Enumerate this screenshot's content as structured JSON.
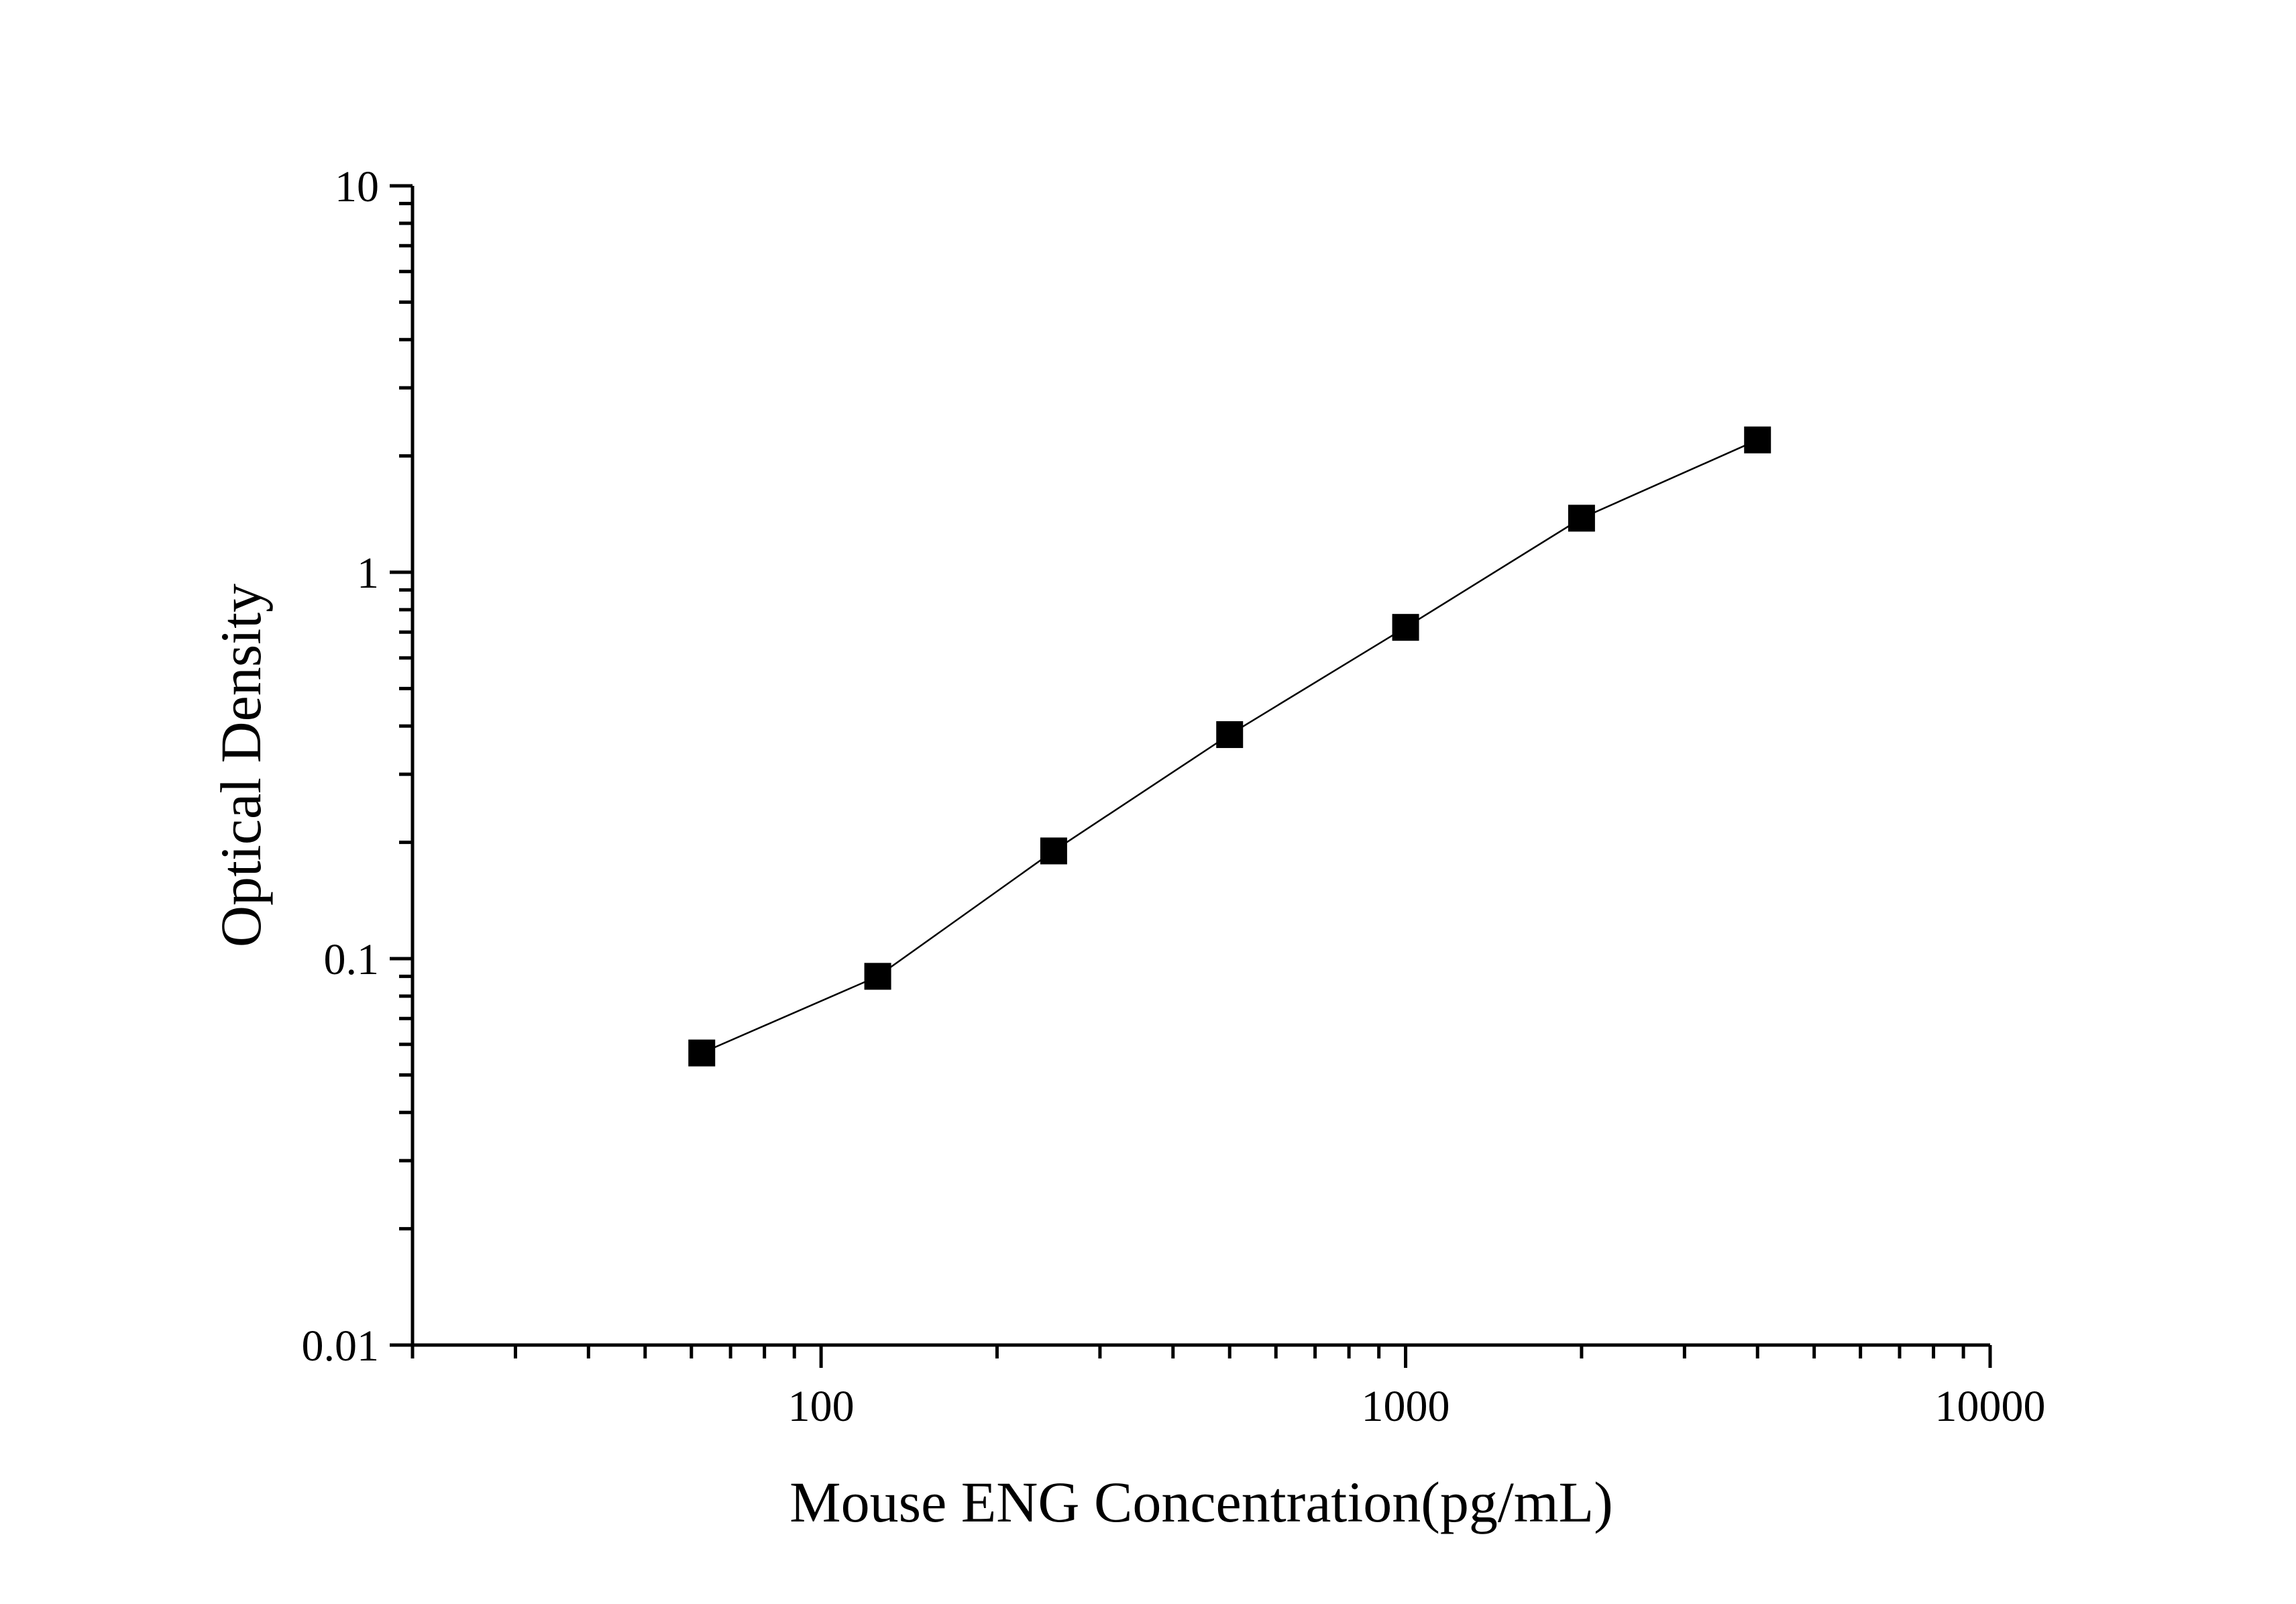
{
  "chart_data": {
    "type": "scatter",
    "xlabel": "Mouse ENG Concentration(pg/mL)",
    "ylabel": "Optical Density",
    "xscale": "log",
    "yscale": "log",
    "xlim": [
      20,
      10000
    ],
    "ylim": [
      0.01,
      10
    ],
    "x_ticks": [
      "100",
      "1000",
      "10000"
    ],
    "y_ticks": [
      "0.01",
      "0.1",
      "1",
      "10"
    ],
    "grid": false,
    "legend": "none",
    "series": [
      {
        "x": [
          62.5,
          125,
          250,
          500,
          1000,
          2000,
          4000
        ],
        "y": [
          0.057,
          0.09,
          0.19,
          0.38,
          0.72,
          1.38,
          2.2
        ],
        "marker": "square",
        "line": true,
        "color": "#000000"
      }
    ]
  }
}
